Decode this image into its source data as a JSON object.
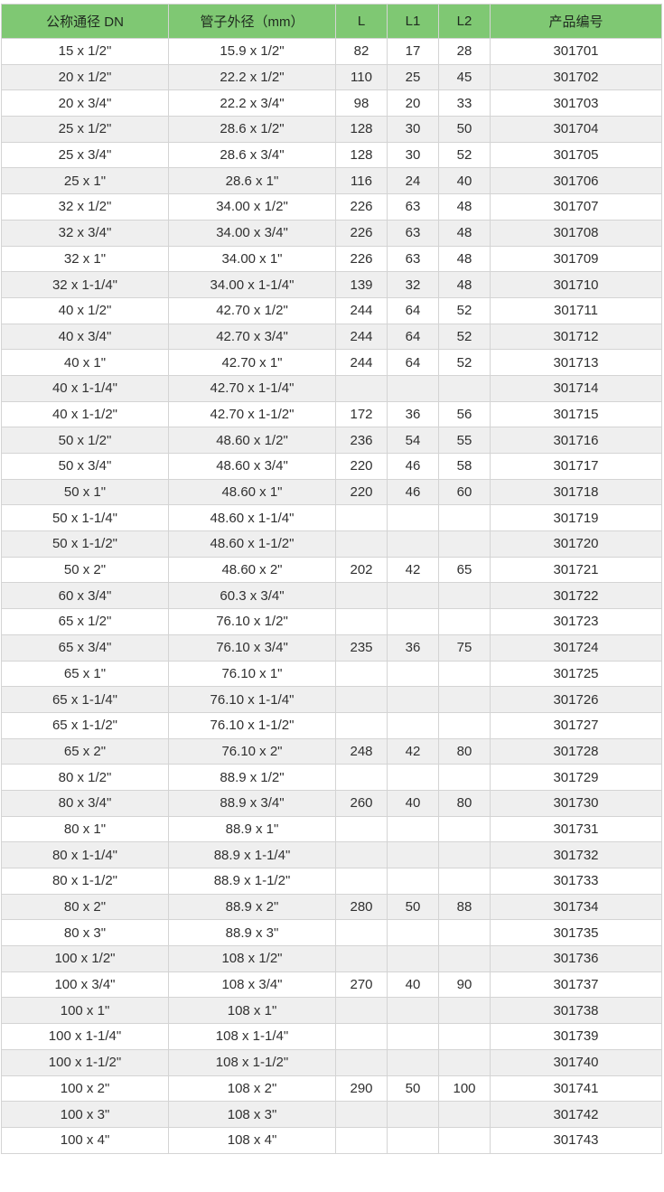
{
  "table": {
    "header_bg": "#7fc873",
    "alt_row_bg": "#efefef",
    "border_color": "#d4d4d4",
    "columns": [
      "公称通径 DN",
      "管子外径（mm）",
      "L",
      "L1",
      "L2",
      "产品编号"
    ],
    "rows": [
      [
        "15 x 1/2\"",
        "15.9 x 1/2\"",
        "82",
        "17",
        "28",
        "301701"
      ],
      [
        "20 x 1/2\"",
        "22.2 x 1/2\"",
        "110",
        "25",
        "45",
        "301702"
      ],
      [
        "20 x 3/4\"",
        "22.2 x 3/4\"",
        "98",
        "20",
        "33",
        "301703"
      ],
      [
        "25 x 1/2\"",
        "28.6 x 1/2\"",
        "128",
        "30",
        "50",
        "301704"
      ],
      [
        "25 x 3/4\"",
        "28.6 x 3/4\"",
        "128",
        "30",
        "52",
        "301705"
      ],
      [
        "25 x 1\"",
        "28.6 x 1\"",
        "116",
        "24",
        "40",
        "301706"
      ],
      [
        "32 x 1/2\"",
        "34.00 x 1/2\"",
        "226",
        "63",
        "48",
        "301707"
      ],
      [
        "32 x 3/4\"",
        "34.00 x 3/4\"",
        "226",
        "63",
        "48",
        "301708"
      ],
      [
        "32 x 1\"",
        "34.00 x 1\"",
        "226",
        "63",
        "48",
        "301709"
      ],
      [
        "32 x 1-1/4\"",
        "34.00 x 1-1/4\"",
        "139",
        "32",
        "48",
        "301710"
      ],
      [
        "40 x 1/2\"",
        "42.70 x 1/2\"",
        "244",
        "64",
        "52",
        "301711"
      ],
      [
        "40 x 3/4\"",
        "42.70 x 3/4\"",
        "244",
        "64",
        "52",
        "301712"
      ],
      [
        "40 x 1\"",
        "42.70 x 1\"",
        "244",
        "64",
        "52",
        "301713"
      ],
      [
        "40 x 1-1/4\"",
        "42.70 x 1-1/4\"",
        "",
        "",
        "",
        "301714"
      ],
      [
        "40 x 1-1/2\"",
        "42.70 x 1-1/2\"",
        "172",
        "36",
        "56",
        "301715"
      ],
      [
        "50 x 1/2\"",
        "48.60 x 1/2\"",
        "236",
        "54",
        "55",
        "301716"
      ],
      [
        "50 x 3/4\"",
        "48.60 x 3/4\"",
        "220",
        "46",
        "58",
        "301717"
      ],
      [
        "50 x 1\"",
        "48.60 x 1\"",
        "220",
        "46",
        "60",
        "301718"
      ],
      [
        "50 x 1-1/4\"",
        "48.60 x 1-1/4\"",
        "",
        "",
        "",
        "301719"
      ],
      [
        "50 x 1-1/2\"",
        "48.60 x 1-1/2\"",
        "",
        "",
        "",
        "301720"
      ],
      [
        "50 x 2\"",
        "48.60 x 2\"",
        "202",
        "42",
        "65",
        "301721"
      ],
      [
        "60 x 3/4\"",
        "60.3 x 3/4\"",
        "",
        "",
        "",
        "301722"
      ],
      [
        "65 x 1/2\"",
        "76.10 x 1/2\"",
        "",
        "",
        "",
        "301723"
      ],
      [
        "65 x 3/4\"",
        "76.10 x 3/4\"",
        "235",
        "36",
        "75",
        "301724"
      ],
      [
        "65 x 1\"",
        "76.10 x 1\"",
        "",
        "",
        "",
        "301725"
      ],
      [
        "65 x 1-1/4\"",
        "76.10 x 1-1/4\"",
        "",
        "",
        "",
        "301726"
      ],
      [
        "65 x 1-1/2\"",
        "76.10 x 1-1/2\"",
        "",
        "",
        "",
        "301727"
      ],
      [
        "65 x 2\"",
        "76.10 x 2\"",
        "248",
        "42",
        "80",
        "301728"
      ],
      [
        "80 x 1/2\"",
        "88.9 x 1/2\"",
        "",
        "",
        "",
        "301729"
      ],
      [
        "80 x 3/4\"",
        "88.9 x 3/4\"",
        "260",
        "40",
        "80",
        "301730"
      ],
      [
        "80 x 1\"",
        "88.9 x 1\"",
        "",
        "",
        "",
        "301731"
      ],
      [
        "80 x 1-1/4\"",
        "88.9 x 1-1/4\"",
        "",
        "",
        "",
        "301732"
      ],
      [
        "80 x 1-1/2\"",
        "88.9 x 1-1/2\"",
        "",
        "",
        "",
        "301733"
      ],
      [
        "80 x 2\"",
        "88.9 x 2\"",
        "280",
        "50",
        "88",
        "301734"
      ],
      [
        "80 x 3\"",
        "88.9 x 3\"",
        "",
        "",
        "",
        "301735"
      ],
      [
        "100 x 1/2\"",
        "108 x 1/2\"",
        "",
        "",
        "",
        "301736"
      ],
      [
        "100 x 3/4\"",
        "108 x 3/4\"",
        "270",
        "40",
        "90",
        "301737"
      ],
      [
        "100 x 1\"",
        "108 x 1\"",
        "",
        "",
        "",
        "301738"
      ],
      [
        "100 x 1-1/4\"",
        "108 x 1-1/4\"",
        "",
        "",
        "",
        "301739"
      ],
      [
        "100 x 1-1/2\"",
        "108 x 1-1/2\"",
        "",
        "",
        "",
        "301740"
      ],
      [
        "100 x 2\"",
        "108 x 2\"",
        "290",
        "50",
        "100",
        "301741"
      ],
      [
        "100 x 3\"",
        "108 x 3\"",
        "",
        "",
        "",
        "301742"
      ],
      [
        "100 x 4\"",
        "108 x 4\"",
        "",
        "",
        "",
        "301743"
      ]
    ]
  }
}
